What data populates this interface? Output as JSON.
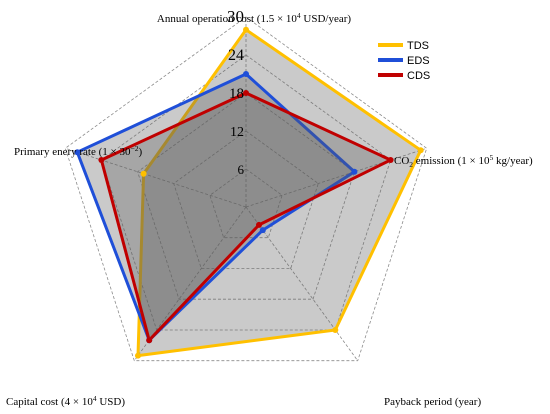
{
  "chart_data": {
    "type": "radar",
    "axes": [
      {
        "pre": "Annual operation cost (1.5 × 10",
        "sup": "4",
        "post": " USD/year)"
      },
      {
        "pre": "CO",
        "sub": "2",
        "mid": " emission (1 × 10",
        "sup": "5",
        "post": " kg/year)"
      },
      {
        "pre": "Payback period (year)"
      },
      {
        "pre": "Capital cost (4 × 10",
        "sup": "4",
        "post": " USD)"
      },
      {
        "pre": "Primary enery rate (1 × 30",
        "sup": "−2",
        "post": ")"
      }
    ],
    "ticks": [
      6,
      12,
      18,
      24,
      30
    ],
    "rmax": 30,
    "series": [
      {
        "name": "TDS",
        "color": "#FFC000",
        "values": [
          28,
          29,
          24,
          29,
          17
        ]
      },
      {
        "name": "EDS",
        "color": "#1F4FD8",
        "values": [
          21,
          18,
          4.5,
          26,
          28
        ]
      },
      {
        "name": "CDS",
        "color": "#C00000",
        "values": [
          18,
          24,
          3.5,
          26,
          24
        ]
      }
    ],
    "legend_position": "top-right"
  }
}
